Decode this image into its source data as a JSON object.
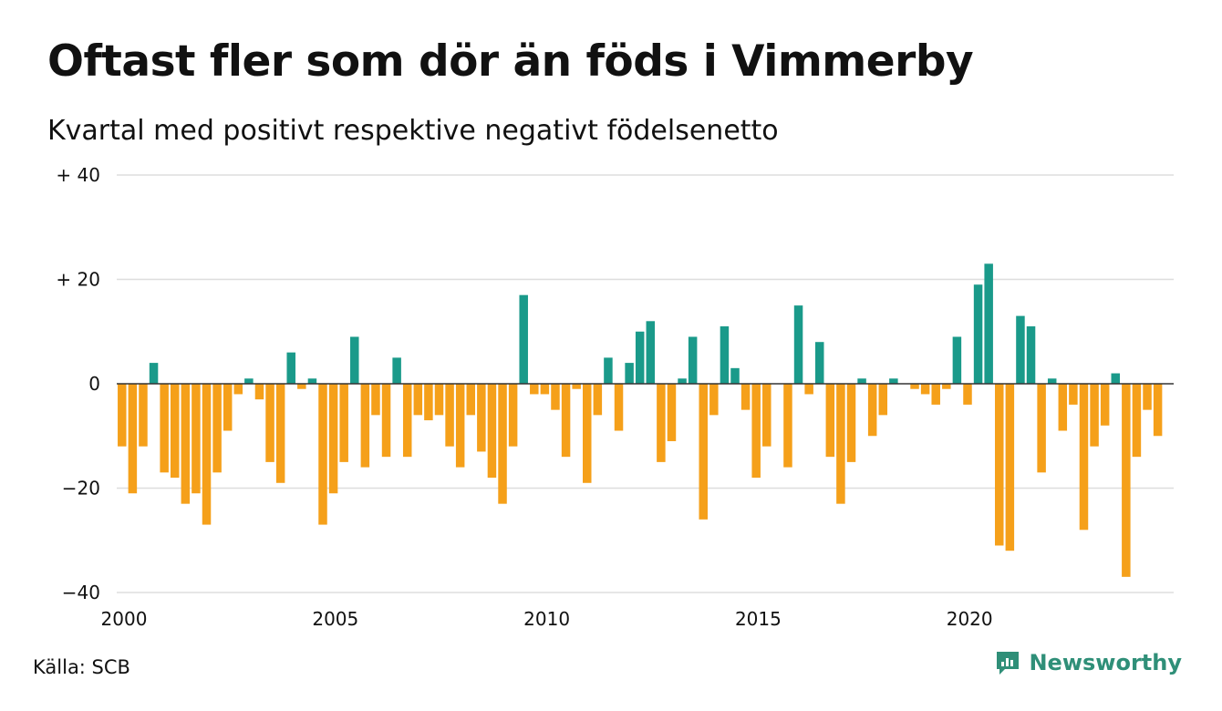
{
  "title": "Oftast fler som dör än föds i Vimmerby",
  "subtitle": "Kvartal med positivt respektive negativt födelsenetto",
  "source": "Källa: SCB",
  "brand": "Newsworthy",
  "colors": {
    "positive": "#1a9a8a",
    "negative": "#f5a01a",
    "grid": "#dddddd",
    "zero": "#333333",
    "brand": "#2f8f78"
  },
  "chart_data": {
    "type": "bar",
    "title": "Oftast fler som dör än föds i Vimmerby",
    "subtitle": "Kvartal med positivt respektive negativt födelsenetto",
    "xlabel": "",
    "ylabel": "",
    "ylim": [
      -40,
      40
    ],
    "yticks": [
      {
        "value": 40,
        "label": "+ 40"
      },
      {
        "value": 20,
        "label": "+ 20"
      },
      {
        "value": 0,
        "label": "0"
      },
      {
        "value": -20,
        "label": "−20"
      },
      {
        "value": -40,
        "label": "−40"
      }
    ],
    "xlim": [
      2000,
      2025
    ],
    "xticks": [
      {
        "value": 2000,
        "label": "2000"
      },
      {
        "value": 2005,
        "label": "2005"
      },
      {
        "value": 2010,
        "label": "2010"
      },
      {
        "value": 2015,
        "label": "2015"
      },
      {
        "value": 2020,
        "label": "2020"
      }
    ],
    "x_unit": "quarter",
    "start_period": "2000 Q1",
    "grid": true,
    "values": [
      -12,
      -21,
      -12,
      4,
      -17,
      -18,
      -23,
      -21,
      -27,
      -17,
      -9,
      -2,
      1,
      -3,
      -15,
      -19,
      6,
      -1,
      1,
      -27,
      -21,
      -15,
      9,
      -16,
      -6,
      -14,
      5,
      -14,
      -6,
      -7,
      -6,
      -12,
      -16,
      -6,
      -13,
      -18,
      -23,
      -12,
      17,
      -2,
      -2,
      -5,
      -14,
      -1,
      -19,
      -6,
      5,
      -9,
      4,
      10,
      12,
      -15,
      -11,
      1,
      9,
      -26,
      -6,
      11,
      3,
      -5,
      -18,
      -12,
      0,
      -16,
      15,
      -2,
      8,
      -14,
      -23,
      -15,
      1,
      -10,
      -6,
      1,
      0,
      -1,
      -2,
      -4,
      -1,
      9,
      -4,
      19,
      23,
      -31,
      -32,
      13,
      11,
      -17,
      1,
      -9,
      -4,
      -28,
      -12,
      -8,
      2,
      -37,
      -14,
      -5,
      -10
    ]
  }
}
